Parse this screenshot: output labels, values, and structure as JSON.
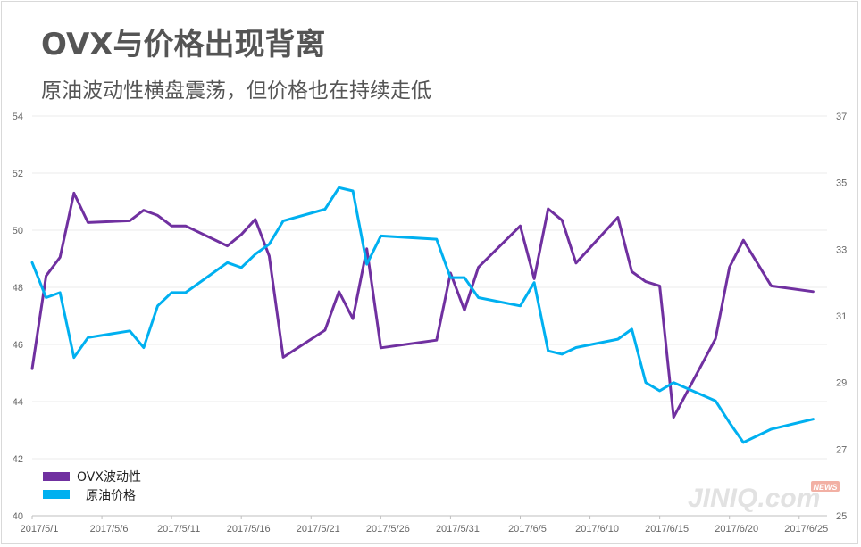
{
  "header": {
    "title": "OVX与价格出现背离",
    "subtitle": "原油波动性横盘震荡，但价格也在持续走低"
  },
  "watermark": {
    "text": "JINIQ.com",
    "badge": "NEWS"
  },
  "chart_data": {
    "type": "line",
    "title": "OVX与价格出现背离",
    "subtitle": "原油波动性横盘震荡，但价格也在持续走低",
    "x_start": "2017-05-01",
    "x_end": "2017-06-27",
    "x_tick_labels": [
      "2017/5/1",
      "2017/5/6",
      "2017/5/11",
      "2017/5/16",
      "2017/5/21",
      "2017/5/26",
      "2017/5/31",
      "2017/6/5",
      "2017/6/10",
      "2017/6/15",
      "2017/6/20",
      "2017/6/25"
    ],
    "y_left": {
      "min": 40,
      "max": 54,
      "ticks": [
        40,
        42,
        44,
        46,
        48,
        50,
        52,
        54
      ]
    },
    "y_right": {
      "min": 25,
      "max": 37,
      "ticks": [
        25,
        27,
        29,
        31,
        33,
        35,
        37
      ]
    },
    "grid": true,
    "legend_position": "bottom-left",
    "series": [
      {
        "name": "OVX波动性",
        "axis": "left",
        "color": "#7030a0",
        "points": [
          [
            "2017-05-01",
            45.15
          ],
          [
            "2017-05-02",
            48.4
          ],
          [
            "2017-05-03",
            49.05
          ],
          [
            "2017-05-04",
            51.3
          ],
          [
            "2017-05-05",
            50.27
          ],
          [
            "2017-05-08",
            50.33
          ],
          [
            "2017-05-09",
            50.7
          ],
          [
            "2017-05-10",
            50.52
          ],
          [
            "2017-05-11",
            50.15
          ],
          [
            "2017-05-12",
            50.15
          ],
          [
            "2017-05-15",
            49.45
          ],
          [
            "2017-05-16",
            49.85
          ],
          [
            "2017-05-17",
            50.38
          ],
          [
            "2017-05-18",
            49.1
          ],
          [
            "2017-05-19",
            45.55
          ],
          [
            "2017-05-22",
            46.5
          ],
          [
            "2017-05-23",
            47.85
          ],
          [
            "2017-05-24",
            46.9
          ],
          [
            "2017-05-25",
            49.35
          ],
          [
            "2017-05-26",
            45.88
          ],
          [
            "2017-05-30",
            46.15
          ],
          [
            "2017-05-31",
            48.5
          ],
          [
            "2017-06-01",
            47.2
          ],
          [
            "2017-06-02",
            48.7
          ],
          [
            "2017-06-05",
            50.15
          ],
          [
            "2017-06-06",
            48.3
          ],
          [
            "2017-06-07",
            50.75
          ],
          [
            "2017-06-08",
            50.35
          ],
          [
            "2017-06-09",
            48.85
          ],
          [
            "2017-06-12",
            50.45
          ],
          [
            "2017-06-13",
            48.55
          ],
          [
            "2017-06-14",
            48.2
          ],
          [
            "2017-06-15",
            48.05
          ],
          [
            "2017-06-16",
            43.45
          ],
          [
            "2017-06-19",
            46.2
          ],
          [
            "2017-06-20",
            48.7
          ],
          [
            "2017-06-21",
            49.65
          ],
          [
            "2017-06-22",
            48.85
          ],
          [
            "2017-06-23",
            48.05
          ],
          [
            "2017-06-26",
            47.85
          ]
        ]
      },
      {
        "name": "原油价格",
        "axis": "right",
        "color": "#00b0f0",
        "points": [
          [
            "2017-05-01",
            32.6
          ],
          [
            "2017-05-02",
            31.55
          ],
          [
            "2017-05-03",
            31.7
          ],
          [
            "2017-05-04",
            29.75
          ],
          [
            "2017-05-05",
            30.35
          ],
          [
            "2017-05-08",
            30.55
          ],
          [
            "2017-05-09",
            30.05
          ],
          [
            "2017-05-10",
            31.3
          ],
          [
            "2017-05-11",
            31.7
          ],
          [
            "2017-05-12",
            31.7
          ],
          [
            "2017-05-15",
            32.6
          ],
          [
            "2017-05-16",
            32.45
          ],
          [
            "2017-05-17",
            32.85
          ],
          [
            "2017-05-18",
            33.15
          ],
          [
            "2017-05-19",
            33.85
          ],
          [
            "2017-05-22",
            34.2
          ],
          [
            "2017-05-23",
            34.85
          ],
          [
            "2017-05-24",
            34.75
          ],
          [
            "2017-05-25",
            32.55
          ],
          [
            "2017-05-26",
            33.4
          ],
          [
            "2017-05-30",
            33.3
          ],
          [
            "2017-05-31",
            32.15
          ],
          [
            "2017-06-01",
            32.15
          ],
          [
            "2017-06-02",
            31.55
          ],
          [
            "2017-06-05",
            31.3
          ],
          [
            "2017-06-06",
            32.0
          ],
          [
            "2017-06-07",
            29.95
          ],
          [
            "2017-06-08",
            29.85
          ],
          [
            "2017-06-09",
            30.05
          ],
          [
            "2017-06-12",
            30.3
          ],
          [
            "2017-06-13",
            30.6
          ],
          [
            "2017-06-14",
            29.0
          ],
          [
            "2017-06-15",
            28.75
          ],
          [
            "2017-06-16",
            29.0
          ],
          [
            "2017-06-19",
            28.45
          ],
          [
            "2017-06-20",
            27.8
          ],
          [
            "2017-06-21",
            27.2
          ],
          [
            "2017-06-22",
            27.4
          ],
          [
            "2017-06-23",
            27.6
          ],
          [
            "2017-06-26",
            27.9
          ]
        ]
      }
    ]
  }
}
